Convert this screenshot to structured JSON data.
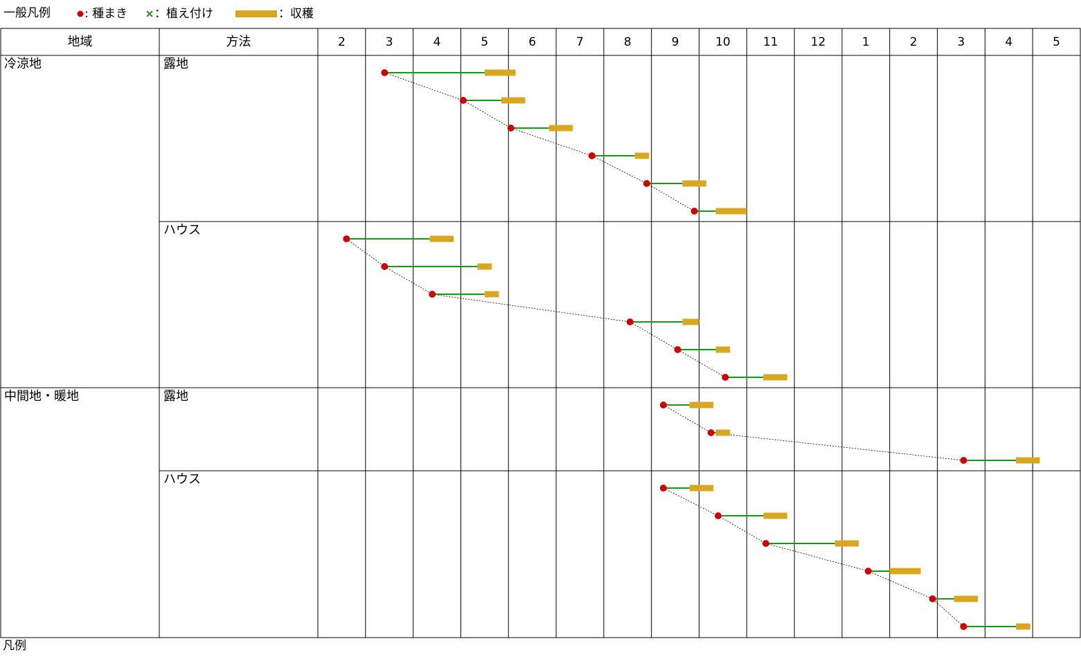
{
  "legend": {
    "title": "一般凡例",
    "sowing_label": ": 種まき",
    "planting_label": "：植え付け",
    "harvest_label": "：収穫",
    "sowing_color": "#cc0000",
    "planting_color": "#2e8b2e",
    "harvest_color": "#daa520",
    "growth_line_color": "#119911"
  },
  "table": {
    "region_header": "地域",
    "method_header": "方法"
  },
  "footer": {
    "label": "凡例"
  },
  "chart_data": {
    "type": "gantt",
    "months": [
      "2",
      "3",
      "4",
      "5",
      "6",
      "7",
      "8",
      "9",
      "10",
      "11",
      "12",
      "1",
      "2",
      "3",
      "4",
      "5"
    ],
    "regions": [
      {
        "name": "冷涼地",
        "methods": [
          {
            "name": "露地",
            "rows": [
              {
                "sow": 1.4,
                "harvest": [
                  3.5,
                  4.15
                ]
              },
              {
                "sow": 3.05,
                "harvest": [
                  3.85,
                  4.35
                ]
              },
              {
                "sow": 4.05,
                "harvest": [
                  4.85,
                  5.35
                ]
              },
              {
                "sow": 5.75,
                "harvest": [
                  6.65,
                  6.95
                ]
              },
              {
                "sow": 6.9,
                "harvest": [
                  7.65,
                  8.15
                ]
              },
              {
                "sow": 7.9,
                "harvest": [
                  8.35,
                  9.0
                ]
              }
            ]
          },
          {
            "name": "ハウス",
            "rows": [
              {
                "sow": 0.6,
                "harvest": [
                  2.35,
                  2.85
                ]
              },
              {
                "sow": 1.4,
                "harvest": [
                  3.35,
                  3.65
                ]
              },
              {
                "sow": 2.4,
                "harvest": [
                  3.5,
                  3.8
                ]
              },
              {
                "sow": 6.55,
                "harvest": [
                  7.65,
                  8.0
                ]
              },
              {
                "sow": 7.55,
                "harvest": [
                  8.35,
                  8.65
                ]
              },
              {
                "sow": 8.55,
                "harvest": [
                  9.35,
                  9.85
                ]
              }
            ]
          }
        ]
      },
      {
        "name": "中間地・暖地",
        "methods": [
          {
            "name": "露地",
            "rows": [
              {
                "sow": 7.25,
                "harvest": [
                  7.8,
                  8.3
                ]
              },
              {
                "sow": 8.25,
                "harvest": [
                  8.35,
                  8.65
                ]
              },
              {
                "sow": 13.55,
                "harvest": [
                  14.65,
                  15.15
                ]
              }
            ]
          },
          {
            "name": "ハウス",
            "rows": [
              {
                "sow": 7.25,
                "harvest": [
                  7.8,
                  8.3
                ]
              },
              {
                "sow": 8.4,
                "harvest": [
                  9.35,
                  9.85
                ]
              },
              {
                "sow": 9.4,
                "harvest": [
                  10.85,
                  11.35
                ]
              },
              {
                "sow": 11.55,
                "harvest": [
                  12.0,
                  12.65
                ]
              },
              {
                "sow": 12.9,
                "harvest": [
                  13.35,
                  13.85
                ]
              },
              {
                "sow": 13.55,
                "harvest": [
                  14.65,
                  14.95
                ]
              }
            ]
          }
        ]
      }
    ]
  }
}
